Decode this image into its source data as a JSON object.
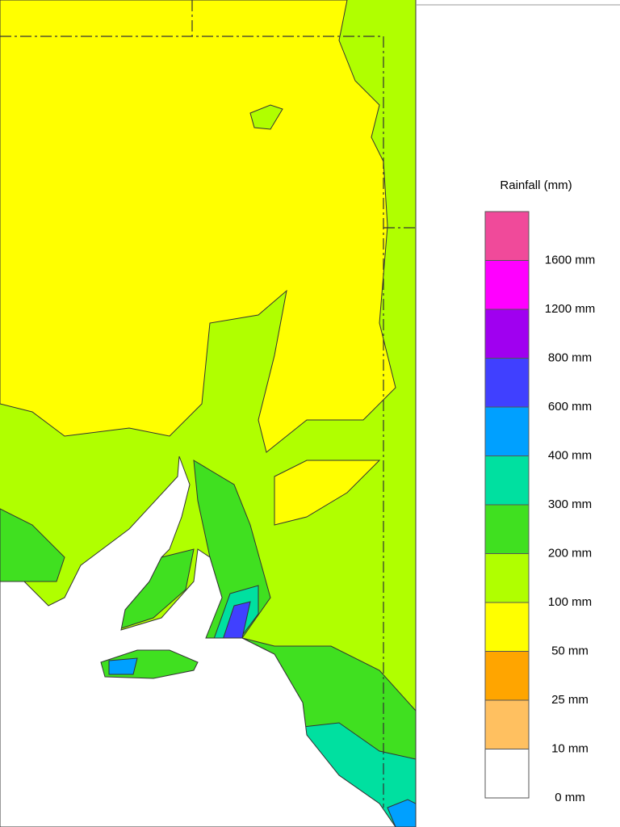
{
  "legend": {
    "title": "Rainfall (mm)",
    "labels": [
      "1600 mm",
      "1200 mm",
      "800 mm",
      "600 mm",
      "400 mm",
      "300 mm",
      "200 mm",
      "100 mm",
      "50 mm",
      "25 mm",
      "10 mm",
      "0 mm"
    ],
    "colors": [
      "#f04a9a",
      "#ff00ff",
      "#a000f0",
      "#4040ff",
      "#00a0ff",
      "#00e0a0",
      "#40e020",
      "#b0ff00",
      "#ffff00",
      "#ffa500",
      "#ffc060",
      "#ffffff"
    ]
  }
}
